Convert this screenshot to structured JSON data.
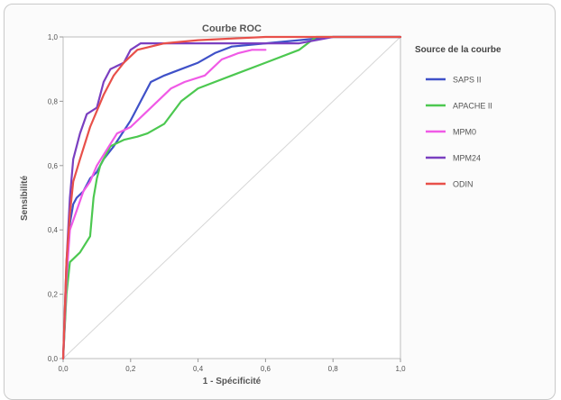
{
  "chart_data": {
    "type": "line",
    "title": "Courbe ROC",
    "xlabel": "1 - Spécificité",
    "ylabel": "Sensibilité",
    "xlim": [
      0,
      1
    ],
    "ylim": [
      0,
      1
    ],
    "xticks": [
      "0,0",
      "0,2",
      "0,4",
      "0,6",
      "0,8",
      "1,0"
    ],
    "yticks": [
      "0,0",
      "0,2",
      "0,4",
      "0,6",
      "0,8",
      "1,0"
    ],
    "grid": false,
    "legend_title": "Source de la courbe",
    "legend_position": "right",
    "series": [
      {
        "name": "SAPS II",
        "color": "#3f51c8",
        "points": [
          [
            0,
            0
          ],
          [
            0.01,
            0.22
          ],
          [
            0.015,
            0.35
          ],
          [
            0.02,
            0.42
          ],
          [
            0.03,
            0.48
          ],
          [
            0.04,
            0.5
          ],
          [
            0.06,
            0.52
          ],
          [
            0.08,
            0.56
          ],
          [
            0.1,
            0.58
          ],
          [
            0.12,
            0.62
          ],
          [
            0.15,
            0.66
          ],
          [
            0.2,
            0.74
          ],
          [
            0.23,
            0.8
          ],
          [
            0.26,
            0.86
          ],
          [
            0.3,
            0.88
          ],
          [
            0.35,
            0.9
          ],
          [
            0.4,
            0.92
          ],
          [
            0.45,
            0.95
          ],
          [
            0.5,
            0.97
          ],
          [
            0.6,
            0.98
          ],
          [
            0.7,
            0.99
          ],
          [
            0.8,
            1
          ],
          [
            1,
            1
          ]
        ]
      },
      {
        "name": "APACHE II",
        "color": "#4cc850",
        "points": [
          [
            0,
            0
          ],
          [
            0.01,
            0.2
          ],
          [
            0.02,
            0.3
          ],
          [
            0.05,
            0.33
          ],
          [
            0.08,
            0.38
          ],
          [
            0.09,
            0.5
          ],
          [
            0.1,
            0.56
          ],
          [
            0.11,
            0.6
          ],
          [
            0.14,
            0.66
          ],
          [
            0.18,
            0.68
          ],
          [
            0.22,
            0.69
          ],
          [
            0.25,
            0.7
          ],
          [
            0.3,
            0.73
          ],
          [
            0.35,
            0.8
          ],
          [
            0.4,
            0.84
          ],
          [
            0.5,
            0.88
          ],
          [
            0.6,
            0.92
          ],
          [
            0.7,
            0.96
          ],
          [
            0.75,
            1
          ],
          [
            1,
            1
          ]
        ]
      },
      {
        "name": "MPM0",
        "color": "#f05ae6",
        "points": [
          [
            0,
            0
          ],
          [
            0.01,
            0.25
          ],
          [
            0.02,
            0.4
          ],
          [
            0.04,
            0.46
          ],
          [
            0.06,
            0.52
          ],
          [
            0.08,
            0.55
          ],
          [
            0.1,
            0.6
          ],
          [
            0.13,
            0.65
          ],
          [
            0.16,
            0.7
          ],
          [
            0.2,
            0.72
          ],
          [
            0.24,
            0.76
          ],
          [
            0.28,
            0.8
          ],
          [
            0.32,
            0.84
          ],
          [
            0.36,
            0.86
          ],
          [
            0.42,
            0.88
          ],
          [
            0.47,
            0.93
          ],
          [
            0.52,
            0.95
          ],
          [
            0.56,
            0.96
          ],
          [
            0.6,
            0.96
          ]
        ]
      },
      {
        "name": "MPM24",
        "color": "#7a3fc0",
        "points": [
          [
            0,
            0
          ],
          [
            0.01,
            0.3
          ],
          [
            0.02,
            0.5
          ],
          [
            0.03,
            0.62
          ],
          [
            0.05,
            0.7
          ],
          [
            0.07,
            0.76
          ],
          [
            0.1,
            0.78
          ],
          [
            0.12,
            0.86
          ],
          [
            0.14,
            0.9
          ],
          [
            0.18,
            0.92
          ],
          [
            0.2,
            0.96
          ],
          [
            0.23,
            0.98
          ],
          [
            0.3,
            0.98
          ],
          [
            0.5,
            0.98
          ],
          [
            0.7,
            0.98
          ],
          [
            0.8,
            1
          ],
          [
            1,
            1
          ]
        ]
      },
      {
        "name": "ODIN",
        "color": "#e8504a",
        "points": [
          [
            0,
            0
          ],
          [
            0.01,
            0.3
          ],
          [
            0.02,
            0.45
          ],
          [
            0.03,
            0.55
          ],
          [
            0.05,
            0.62
          ],
          [
            0.08,
            0.72
          ],
          [
            0.12,
            0.82
          ],
          [
            0.15,
            0.88
          ],
          [
            0.18,
            0.92
          ],
          [
            0.22,
            0.96
          ],
          [
            0.3,
            0.98
          ],
          [
            0.4,
            0.99
          ],
          [
            0.6,
            1
          ],
          [
            1,
            1
          ]
        ]
      }
    ]
  }
}
